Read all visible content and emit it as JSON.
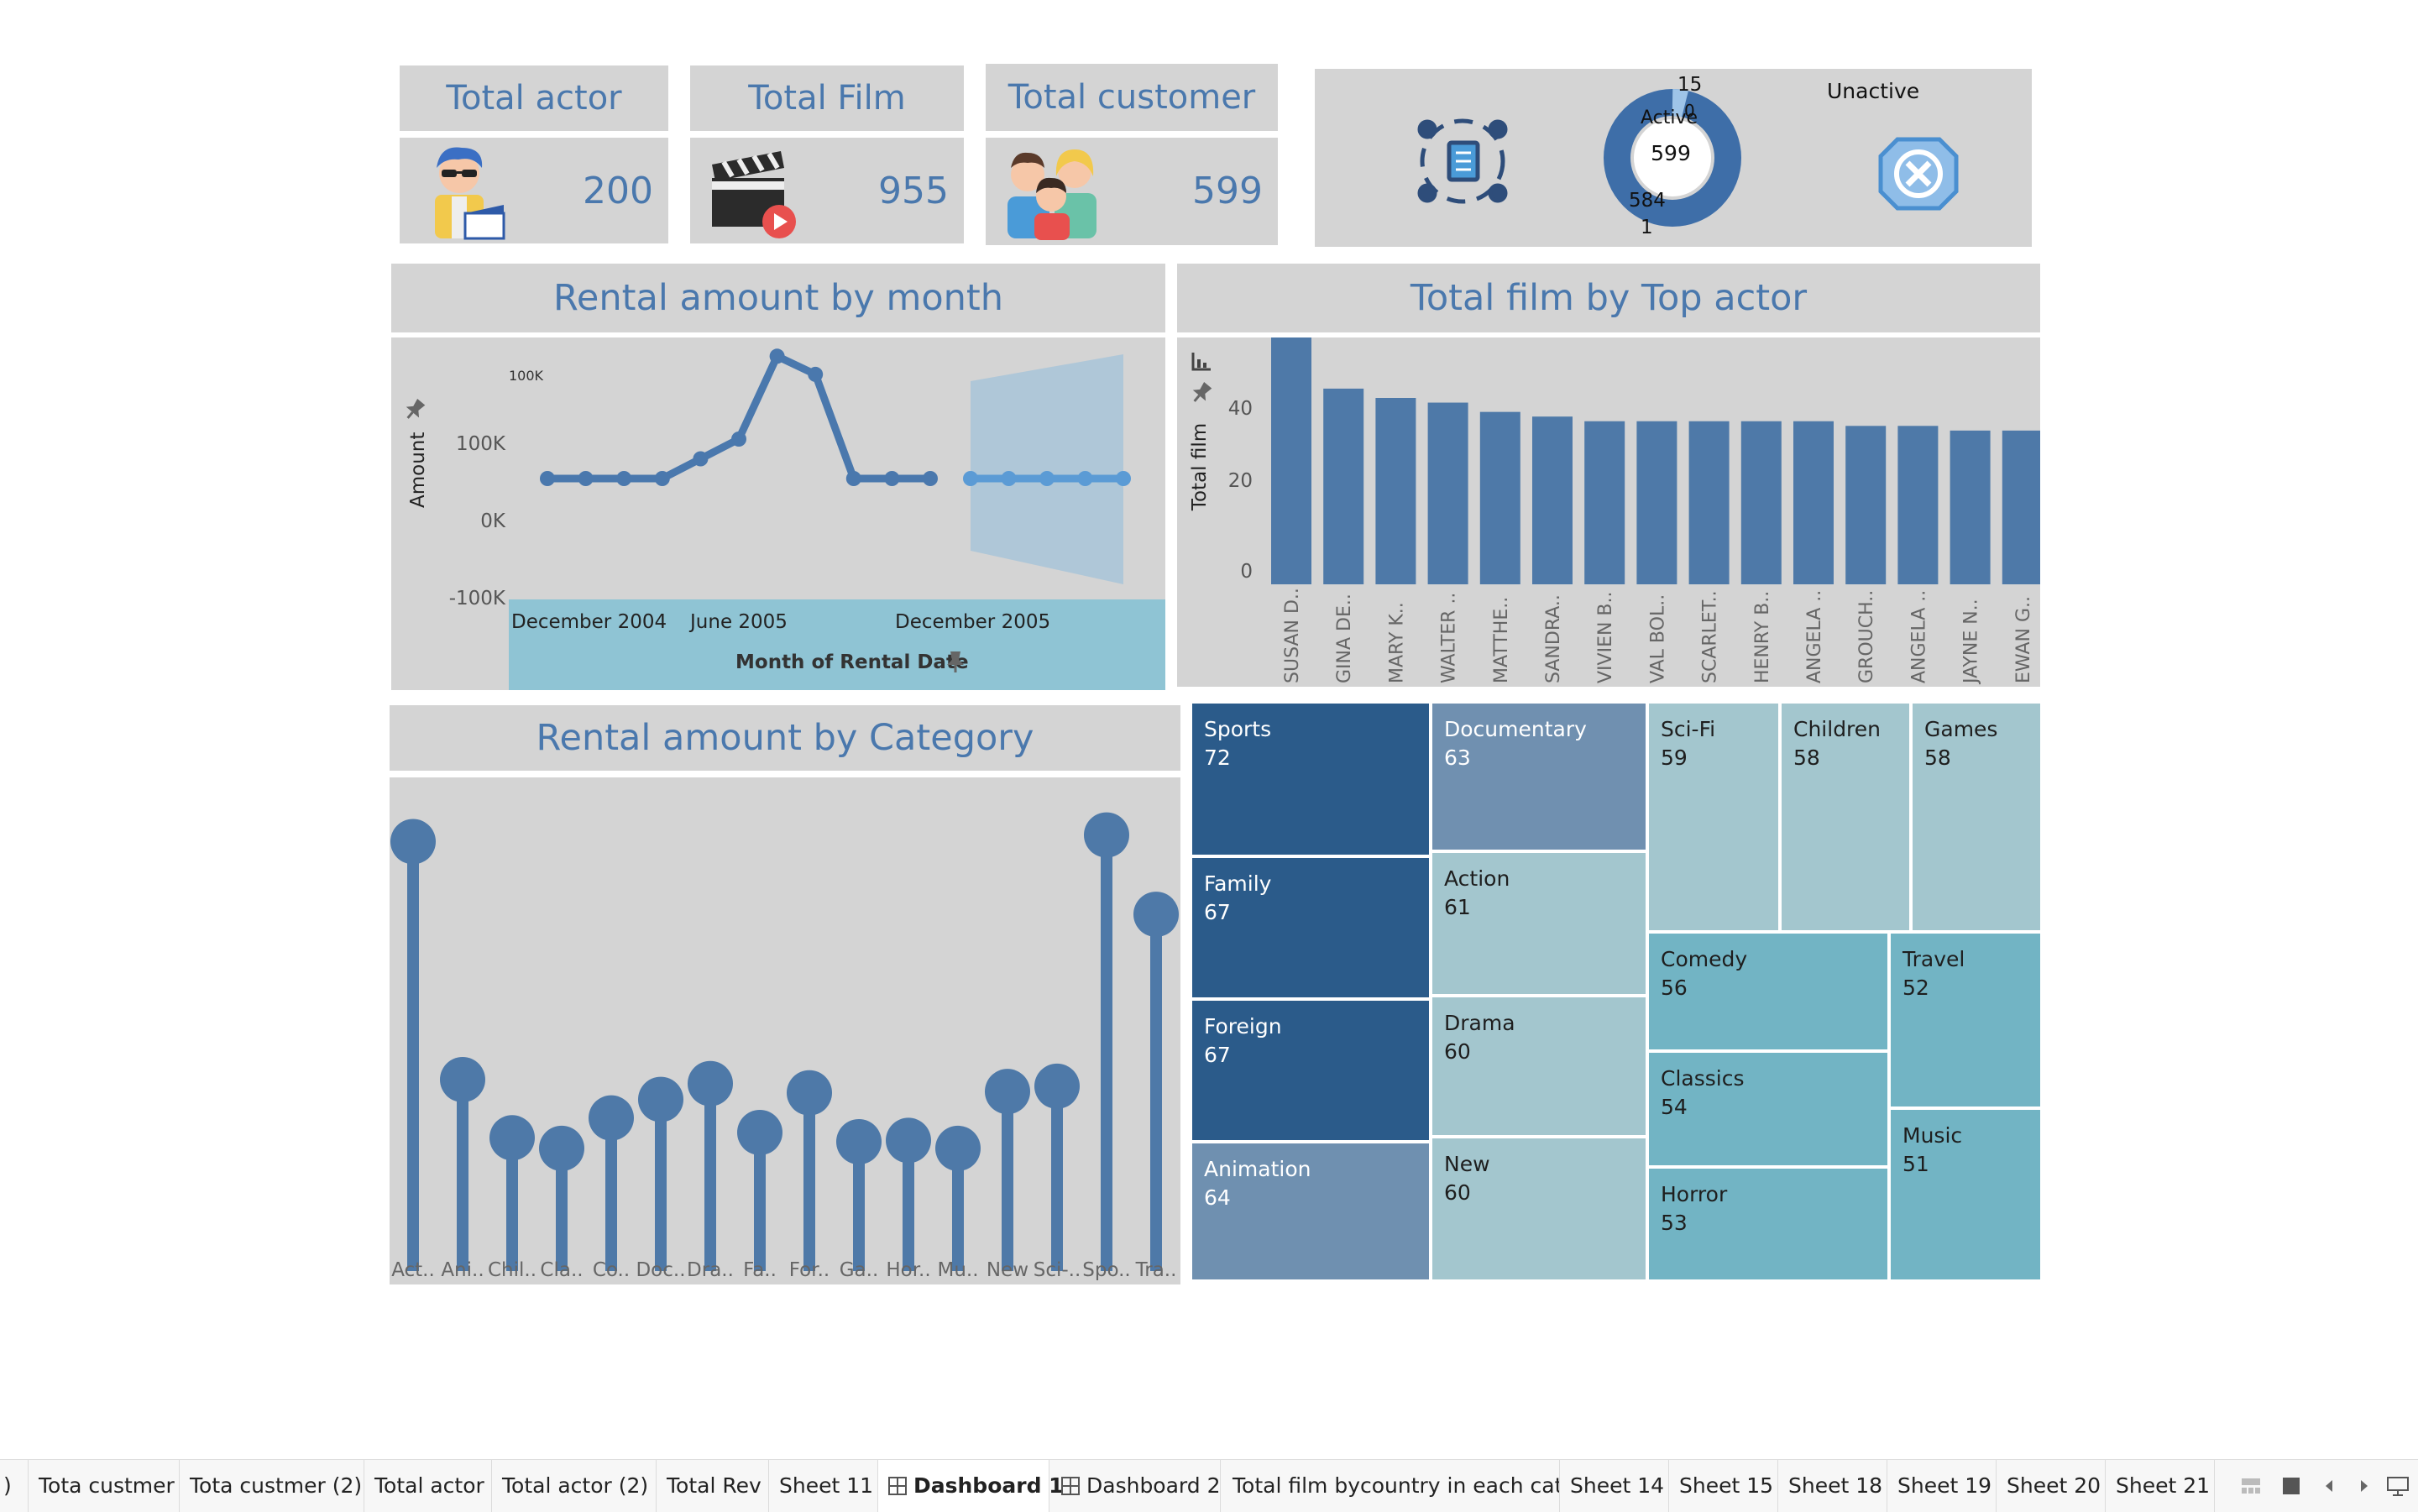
{
  "kpis": {
    "actor": {
      "title": "Total actor",
      "value": "200"
    },
    "film": {
      "title": "Total Film",
      "value": "955"
    },
    "customer": {
      "title": "Total customer",
      "value": "599"
    }
  },
  "status_panel": {
    "unactive_label": "Unactive",
    "active_label": "Active",
    "center_value": "599",
    "label_15": "15",
    "label_0": "0",
    "label_584": "584",
    "label_1": "1"
  },
  "rental_month": {
    "title": "Rental amount by month",
    "ylabel": "Amount",
    "xlabel": "Month of Rental Date",
    "yticks": [
      "100K",
      "0K",
      "-100K"
    ],
    "xticks": [
      "December 2004",
      "June 2005",
      "December 2005"
    ]
  },
  "top_actor": {
    "title": "Total film by Top actor",
    "ylabel": "Total film",
    "yticks": [
      "40",
      "20",
      "0"
    ]
  },
  "category": {
    "title": "Rental amount by Category"
  },
  "chart_data": [
    {
      "type": "line",
      "title": "Rental amount by month",
      "xlabel": "Month of Rental Date",
      "ylabel": "Amount",
      "ylim": [
        -130000,
        160000
      ],
      "series": [
        {
          "values": [
            0,
            0,
            0,
            0,
            25000,
            50000,
            155000,
            132000,
            0,
            0,
            0
          ]
        },
        {
          "values": [
            0,
            0,
            0,
            0,
            0
          ]
        }
      ],
      "forecast_band": true,
      "x_ticks": [
        "December 2004",
        "June 2005",
        "December 2005"
      ]
    },
    {
      "type": "bar",
      "title": "Total film by Top actor",
      "ylabel": "Total film",
      "ylim": [
        0,
        55
      ],
      "categories": [
        "SUSAN D..",
        "GINA DE..",
        "MARY K..",
        "WALTER ..",
        "MATTHE..",
        "SANDRA..",
        "VIVIEN B..",
        "VAL BOL..",
        "SCARLET..",
        "HENRY B..",
        "ANGELA ..",
        "GROUCH..",
        "ANGELA ..",
        "JAYNE N..",
        "EWAN G.."
      ],
      "values": [
        54,
        42,
        40,
        39,
        37,
        36,
        35,
        35,
        35,
        35,
        35,
        34,
        34,
        33,
        33
      ]
    },
    {
      "type": "lollipop",
      "title": "Rental amount by Category",
      "categories": [
        "Act..",
        "Ani..",
        "Chil..",
        "Cla..",
        "Co..",
        "Doc..",
        "Dra..",
        "Fa..",
        "For..",
        "Ga..",
        "Hor..",
        "Mu..",
        "New",
        "Sci-..",
        "Spo..",
        "Tra.."
      ],
      "values": [
        4375,
        3475,
        3255,
        3215,
        3330,
        3400,
        3460,
        3275,
        3425,
        3240,
        3245,
        3215,
        3430,
        3450,
        4400,
        4100
      ]
    },
    {
      "type": "treemap",
      "cells": [
        {
          "label": "Sports",
          "value": 72
        },
        {
          "label": "Family",
          "value": 67
        },
        {
          "label": "Foreign",
          "value": 67
        },
        {
          "label": "Animation",
          "value": 64
        },
        {
          "label": "Documentary",
          "value": 63
        },
        {
          "label": "Action",
          "value": 61
        },
        {
          "label": "Drama",
          "value": 60
        },
        {
          "label": "New",
          "value": 60
        },
        {
          "label": "Sci-Fi",
          "value": 59
        },
        {
          "label": "Children",
          "value": 58
        },
        {
          "label": "Games",
          "value": 58
        },
        {
          "label": "Comedy",
          "value": 56
        },
        {
          "label": "Travel",
          "value": 52
        },
        {
          "label": "Classics",
          "value": 54
        },
        {
          "label": "Music",
          "value": 51
        },
        {
          "label": "Horror",
          "value": 53
        }
      ]
    }
  ],
  "tabs": [
    {
      "label": ")"
    },
    {
      "label": "Tota custmer"
    },
    {
      "label": "Tota custmer (2)"
    },
    {
      "label": "Total actor"
    },
    {
      "label": "Total actor (2)"
    },
    {
      "label": "Total Rev"
    },
    {
      "label": "Sheet 11"
    },
    {
      "label": "Dashboard 1"
    },
    {
      "label": "Dashboard 2"
    },
    {
      "label": "Total film bycountry in each cat..."
    },
    {
      "label": "Sheet 14"
    },
    {
      "label": "Sheet 15"
    },
    {
      "label": "Sheet 18"
    },
    {
      "label": "Sheet 19"
    },
    {
      "label": "Sheet 20"
    },
    {
      "label": "Sheet 21"
    }
  ]
}
